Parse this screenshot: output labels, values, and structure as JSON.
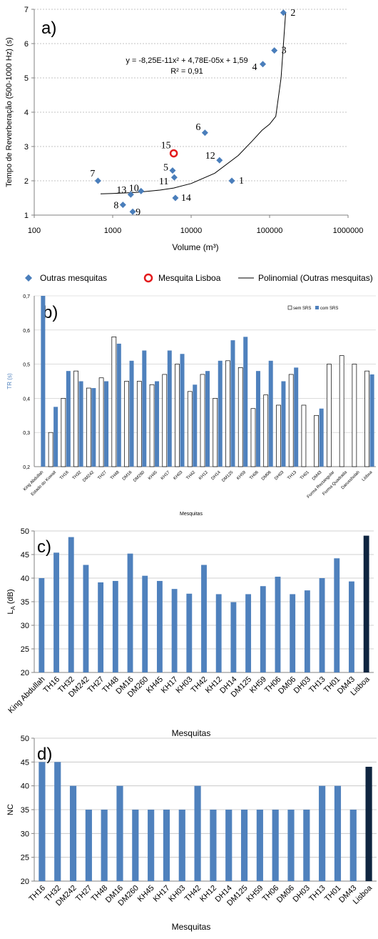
{
  "chart_data": [
    {
      "type": "scatter",
      "panel_label": "a)",
      "xlabel": "Volume (m³)",
      "ylabel": "Tempo de Reverberação  (500-1000 Hz)  (s)",
      "x_scale": "log",
      "xlim": [
        100,
        1000000
      ],
      "ylim": [
        1,
        7
      ],
      "x_ticks": [
        "100",
        "1000",
        "10000",
        "100000",
        "1000000"
      ],
      "y_ticks": [
        "1",
        "2",
        "3",
        "4",
        "5",
        "6",
        "7"
      ],
      "grid": "horizontal",
      "equation": "y = -8,25E-11x² + 4,78E-05x + 1,59",
      "r_squared": "R² = 0,91",
      "series": [
        {
          "name": "Outras mesquitas",
          "color": "#4a7ebb",
          "marker": "diamond",
          "points": [
            {
              "label": "1",
              "x": 33000,
              "y": 2.0
            },
            {
              "label": "2",
              "x": 150000,
              "y": 6.9
            },
            {
              "label": "3",
              "x": 115000,
              "y": 5.8
            },
            {
              "label": "4",
              "x": 82000,
              "y": 5.4
            },
            {
              "label": "5",
              "x": 5800,
              "y": 2.3
            },
            {
              "label": "6",
              "x": 15000,
              "y": 3.4
            },
            {
              "label": "7",
              "x": 650,
              "y": 2.0
            },
            {
              "label": "8",
              "x": 1350,
              "y": 1.3
            },
            {
              "label": "9",
              "x": 1800,
              "y": 1.1
            },
            {
              "label": "10",
              "x": 2300,
              "y": 1.7
            },
            {
              "label": "11",
              "x": 6100,
              "y": 2.1
            },
            {
              "label": "12",
              "x": 23000,
              "y": 2.6
            },
            {
              "label": "13",
              "x": 1700,
              "y": 1.6
            },
            {
              "label": "14",
              "x": 6300,
              "y": 1.5
            }
          ]
        },
        {
          "name": "Mesquita Lisboa",
          "color": "#e31a1c",
          "marker": "circle",
          "points": [
            {
              "label": "15",
              "x": 6000,
              "y": 2.8
            }
          ]
        },
        {
          "name": "Polinomial (Outras mesquitas)",
          "color": "#000000",
          "type": "line",
          "x": [
            700,
            1000,
            2000,
            4000,
            6000,
            10000,
            20000,
            40000,
            60000,
            80000,
            100000,
            120000,
            140000,
            160000
          ],
          "y": [
            1.62,
            1.63,
            1.66,
            1.73,
            1.79,
            1.92,
            2.22,
            2.74,
            3.16,
            3.47,
            3.65,
            3.88,
            5.0,
            6.9
          ]
        }
      ]
    },
    {
      "type": "bar",
      "panel_label": "b)",
      "xlabel": "Mesquitas",
      "ylabel": "TR (s)",
      "ylim": [
        0.2,
        0.7
      ],
      "y_ticks": [
        "0,2",
        "0,3",
        "0,4",
        "0,5",
        "0,6",
        "0,7"
      ],
      "grid": "horizontal",
      "legend_position": "top-right",
      "categories": [
        "King Abdullah",
        "Estado do Kuwait",
        "TH16",
        "TH32",
        "DM242",
        "TH27",
        "TH48",
        "DM16",
        "DM260",
        "KH45",
        "KH17",
        "KH03",
        "TH42",
        "KH12",
        "DH14",
        "DM125",
        "KH59",
        "TH06",
        "DM06",
        "DH03",
        "TH13",
        "TH01",
        "DM43",
        "Forma Rectangular",
        "Forma Quadrada",
        "Darussholah",
        "Lisboa"
      ],
      "series": [
        {
          "name": "sem SRS",
          "color": "#ffffff",
          "stroke": "#000000",
          "values": [
            null,
            0.3,
            0.4,
            0.48,
            0.43,
            0.46,
            0.58,
            0.45,
            0.45,
            0.44,
            0.47,
            0.5,
            0.42,
            0.47,
            0.4,
            0.51,
            0.49,
            0.37,
            0.41,
            0.38,
            0.47,
            0.38,
            0.35,
            0.5,
            0.525,
            0.5,
            0.48
          ]
        },
        {
          "name": "com SRS",
          "color": "#4f81bd",
          "values": [
            0.7,
            0.375,
            0.48,
            0.45,
            0.43,
            0.45,
            0.56,
            0.51,
            0.54,
            0.45,
            0.54,
            0.53,
            0.44,
            0.48,
            0.51,
            0.57,
            0.58,
            0.48,
            0.51,
            0.45,
            0.49,
            null,
            0.37,
            null,
            null,
            null,
            0.47
          ]
        }
      ]
    },
    {
      "type": "bar",
      "panel_label": "c)",
      "xlabel": "Mesquitas",
      "ylabel": "L_A (dB)",
      "ylabel_main": "L",
      "ylabel_sub": "A",
      "ylabel_tail": " (dB)",
      "ylim": [
        20,
        50
      ],
      "y_ticks": [
        "20",
        "25",
        "30",
        "35",
        "40",
        "45",
        "50"
      ],
      "grid": "horizontal",
      "categories": [
        "King Abdullah",
        "TH16",
        "TH32",
        "DM242",
        "TH27",
        "TH48",
        "DM16",
        "DM260",
        "KH45",
        "KH17",
        "KH03",
        "TH42",
        "KH12",
        "DH14",
        "DM125",
        "KH59",
        "TH06",
        "DM06",
        "DH03",
        "TH13",
        "TH01",
        "DM43",
        "Lisboa"
      ],
      "values": [
        40.0,
        45.4,
        48.7,
        42.8,
        39.1,
        39.4,
        45.2,
        40.5,
        39.4,
        37.7,
        36.7,
        42.8,
        36.6,
        34.9,
        36.6,
        38.3,
        40.3,
        36.6,
        37.4,
        40.0,
        44.2,
        39.3,
        49.0
      ],
      "bar_color": "#4f81bd",
      "highlight_color": "#0f2540"
    },
    {
      "type": "bar",
      "panel_label": "d)",
      "xlabel": "Mesquitas",
      "ylabel": "NC",
      "ylim": [
        20,
        50
      ],
      "y_ticks": [
        "20",
        "25",
        "30",
        "35",
        "40",
        "45",
        "50"
      ],
      "grid": "horizontal",
      "categories": [
        "TH16",
        "TH32",
        "DM242",
        "TH27",
        "TH48",
        "DM16",
        "DM260",
        "KH45",
        "KH17",
        "KH03",
        "TH42",
        "KH12",
        "DH14",
        "DM125",
        "KH59",
        "TH06",
        "DM06",
        "DH03",
        "TH13",
        "TH01",
        "DM43",
        "Lisboa"
      ],
      "values": [
        45,
        45,
        40,
        35,
        35,
        40,
        35,
        35,
        35,
        35,
        40,
        35,
        35,
        35,
        35,
        35,
        35,
        35,
        40,
        40,
        35,
        44
      ],
      "bar_color": "#4f81bd",
      "highlight_color": "#0f2540"
    }
  ]
}
